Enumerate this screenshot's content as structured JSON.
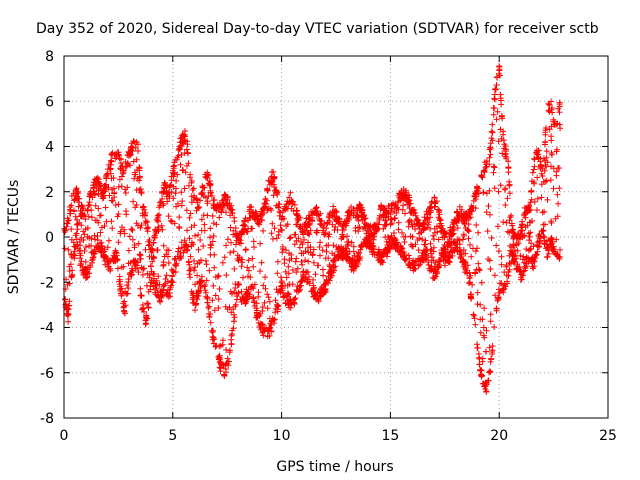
{
  "chart_data": {
    "type": "scatter",
    "title": "Day 352 of 2020, Sidereal Day-to-day VTEC variation (SDTVAR) for receiver sctb",
    "xlabel": "GPS time / hours",
    "ylabel": "SDTVAR / TECUs",
    "xlim": [
      0,
      25
    ],
    "ylim": [
      -8,
      8
    ],
    "xticks": [
      0,
      5,
      10,
      15,
      20,
      25
    ],
    "yticks": [
      -8,
      -6,
      -4,
      -2,
      0,
      2,
      4,
      6,
      8
    ],
    "grid": true,
    "marker": "+",
    "color": "#ff0000",
    "series": [
      {
        "name": "SDTVAR",
        "x": [
          0.0,
          0.2,
          0.4,
          0.6,
          0.8,
          1.0,
          1.2,
          1.4,
          1.6,
          1.8,
          2.0,
          2.2,
          2.4,
          2.6,
          2.8,
          3.0,
          3.2,
          3.4,
          3.6,
          3.8,
          4.0,
          4.2,
          4.4,
          4.6,
          4.8,
          5.0,
          5.2,
          5.4,
          5.6,
          5.8,
          6.0,
          6.2,
          6.4,
          6.6,
          6.8,
          7.0,
          7.2,
          7.4,
          7.6,
          7.8,
          8.0,
          8.2,
          8.4,
          8.6,
          8.8,
          9.0,
          9.2,
          9.4,
          9.6,
          9.8,
          10.0,
          10.2,
          10.4,
          10.6,
          10.8,
          11.0,
          11.2,
          11.4,
          11.6,
          11.8,
          12.0,
          12.2,
          12.4,
          12.6,
          12.8,
          13.0,
          13.2,
          13.4,
          13.6,
          13.8,
          14.0,
          14.2,
          14.4,
          14.6,
          14.8,
          15.0,
          15.2,
          15.4,
          15.6,
          15.8,
          16.0,
          16.2,
          16.4,
          16.6,
          16.8,
          17.0,
          17.2,
          17.4,
          17.6,
          17.8,
          18.0,
          18.2,
          18.4,
          18.6,
          18.8,
          19.0,
          19.2,
          19.4,
          19.6,
          19.8,
          20.0,
          20.2,
          20.4,
          20.6,
          20.8,
          21.0,
          21.2,
          21.4,
          21.6,
          21.8,
          22.0,
          22.2,
          22.4,
          22.6,
          22.8
        ],
        "upper": [
          0.5,
          1.0,
          2.0,
          2.2,
          1.5,
          1.0,
          2.0,
          2.6,
          2.8,
          2.0,
          3.0,
          3.8,
          4.0,
          3.5,
          3.2,
          4.0,
          4.4,
          4.2,
          1.5,
          1.0,
          -0.5,
          0.5,
          1.5,
          2.5,
          2.0,
          3.0,
          3.8,
          4.5,
          4.8,
          3.0,
          2.0,
          1.5,
          2.5,
          3.0,
          2.0,
          1.5,
          1.5,
          2.0,
          1.8,
          1.0,
          0.0,
          0.5,
          1.0,
          1.5,
          1.2,
          1.0,
          1.5,
          2.5,
          3.0,
          2.0,
          1.0,
          1.5,
          2.0,
          1.5,
          1.0,
          0.5,
          1.0,
          1.2,
          1.5,
          1.0,
          0.5,
          1.0,
          1.5,
          1.0,
          0.5,
          1.0,
          1.5,
          1.2,
          1.5,
          1.0,
          0.5,
          0.5,
          0.8,
          1.5,
          1.2,
          1.5,
          1.5,
          2.0,
          2.2,
          2.0,
          1.5,
          1.0,
          0.5,
          1.0,
          1.5,
          1.8,
          1.5,
          0.5,
          0.2,
          0.5,
          1.0,
          1.5,
          1.0,
          1.2,
          1.5,
          2.5,
          3.0,
          3.5,
          4.0,
          6.5,
          7.8,
          4.5,
          3.5,
          0.5,
          0.0,
          0.5,
          1.5,
          1.5,
          3.5,
          4.0,
          3.0,
          6.0,
          6.0,
          5.0,
          6.2
        ],
        "lower": [
          -3.0,
          -3.8,
          -1.5,
          -0.5,
          -1.5,
          -2.0,
          -1.5,
          -1.0,
          -0.5,
          -1.0,
          -1.5,
          -1.5,
          -1.0,
          -2.5,
          -3.5,
          -2.0,
          -1.5,
          -1.5,
          -3.5,
          -4.0,
          -2.0,
          -2.5,
          -3.0,
          -2.5,
          -3.0,
          -2.0,
          -1.5,
          -1.0,
          -0.5,
          -2.0,
          -3.5,
          -2.5,
          -2.0,
          -3.0,
          -4.5,
          -5.0,
          -6.0,
          -6.2,
          -5.5,
          -4.0,
          -2.5,
          -3.0,
          -3.0,
          -2.5,
          -3.5,
          -4.0,
          -4.5,
          -4.5,
          -4.0,
          -3.5,
          -2.5,
          -3.0,
          -3.2,
          -3.0,
          -2.5,
          -2.0,
          -2.0,
          -2.5,
          -3.0,
          -2.8,
          -2.5,
          -2.0,
          -1.5,
          -1.0,
          -1.0,
          -1.0,
          -1.5,
          -1.5,
          -1.0,
          -0.5,
          -0.5,
          -0.8,
          -1.0,
          -1.2,
          -1.0,
          -0.5,
          -0.5,
          -0.8,
          -1.0,
          -1.2,
          -1.5,
          -1.5,
          -1.2,
          -1.0,
          -1.5,
          -2.0,
          -1.5,
          -1.0,
          -1.5,
          -1.0,
          -0.5,
          -1.0,
          -1.5,
          -2.0,
          -3.5,
          -5.0,
          -6.5,
          -7.0,
          -6.0,
          -4.0,
          -2.5,
          -2.5,
          -2.0,
          -1.0,
          -1.5,
          -2.0,
          -1.5,
          -1.0,
          -1.5,
          -0.5,
          0.0,
          -1.0,
          -0.5,
          -1.0,
          -1.0
        ]
      }
    ]
  }
}
